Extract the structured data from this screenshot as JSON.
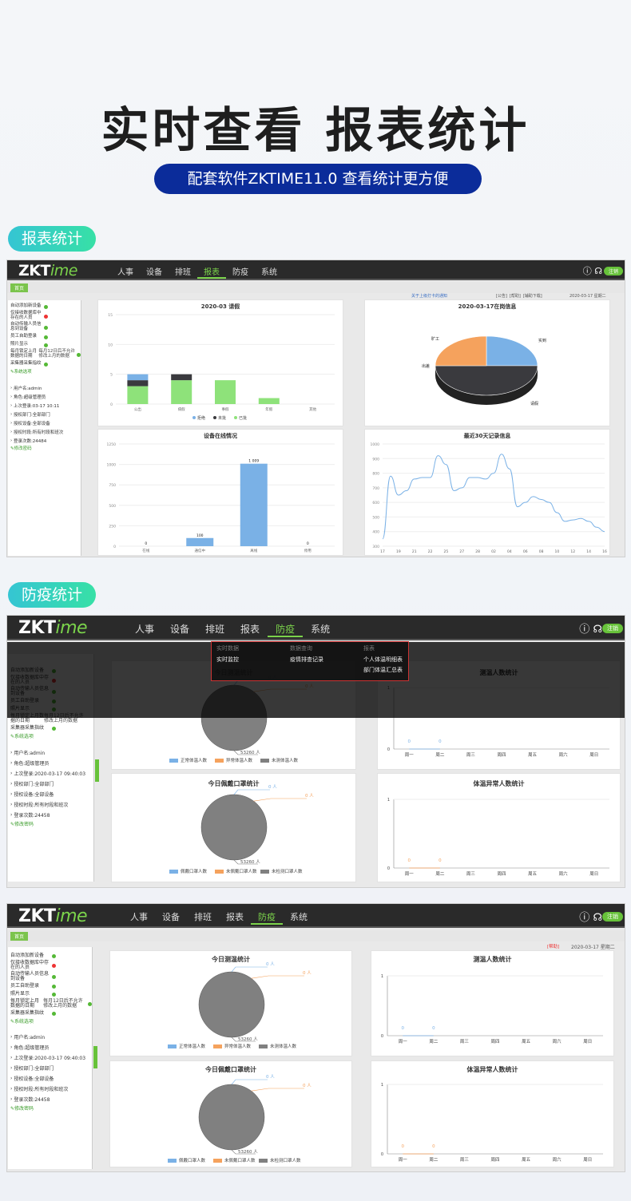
{
  "hero": {
    "title": "实时查看 报表统计",
    "subtitle": "配套软件ZKTIME11.0 查看统计更方便"
  },
  "sections": {
    "report": "报表统计",
    "epidemic": "防疫统计"
  },
  "app": {
    "logo_main": "ZKT",
    "logo_accent": "ime",
    "nav": [
      "人事",
      "设备",
      "排班",
      "报表",
      "防疫",
      "系统"
    ],
    "logout": "注销",
    "home_tab": "首页",
    "sidebar": {
      "items": [
        {
          "label": "自动添加新设备",
          "ext": "",
          "status": "ok"
        },
        {
          "label": "仅接收数据库中存在的人员",
          "ext": "",
          "status": "err"
        },
        {
          "label": "自动传输人员信息到设备",
          "ext": "",
          "status": "ok"
        },
        {
          "label": "员工自助登录",
          "ext": "",
          "status": "ok"
        },
        {
          "label": "照片显示",
          "ext": "",
          "status": "ok"
        },
        {
          "label": "每月锁定上月数据的日期",
          "ext": "每月12日后不允许修改上月的数据",
          "status": "ok"
        },
        {
          "label": "采集器采集指纹",
          "ext": "",
          "status": "ok"
        }
      ],
      "settings_link": "系统选项",
      "user_name": "用户名:admin",
      "role": "角色:超级管理员",
      "last_login_a": "上次登录:03-17 10:11",
      "last_login_b": "上次登录:2020-03-17 09:40:03",
      "dept": "授权部门:全部部门",
      "device": "授权设备:全部设备",
      "period": "授权时段:所有时段和班次",
      "login_count": "登录次数:24484",
      "login_count_b": "登录次数:24458",
      "change_pwd": "修改密码"
    },
    "notice": "关于上级打卡的通知",
    "toolbar_links": "[公告]",
    "help_link": "[帮助]",
    "guide_link": "[辅助下载]",
    "date": "2020-03-17 星期二"
  },
  "epidemic_menu": {
    "cols": [
      {
        "header": "实时数据",
        "items": [
          "实时监控"
        ]
      },
      {
        "header": "数据查询",
        "items": [
          "疫情排查记录"
        ]
      },
      {
        "header": "报表",
        "items": [
          "个人体温明细表",
          "部门体温汇总表"
        ]
      }
    ]
  },
  "chart_data": [
    {
      "type": "bar",
      "title": "2020-03 请假",
      "categories": [
        "公出",
        "病假",
        "事假",
        "年假",
        "其他"
      ],
      "series": [
        {
          "name": "已批",
          "values": [
            3,
            4,
            4,
            1,
            0
          ],
          "color": "#8ee27a"
        },
        {
          "name": "未批",
          "values": [
            1,
            1,
            0,
            0,
            0
          ],
          "color": "#3a3a3e"
        },
        {
          "name": "拒绝",
          "values": [
            1,
            0,
            0,
            0,
            0
          ],
          "color": "#7ab1e6"
        }
      ],
      "ylim": [
        0,
        15
      ],
      "yticks": [
        0,
        5,
        10,
        15
      ],
      "legend": [
        "拒绝",
        "未批",
        "已批"
      ],
      "legend_colors": [
        "#7ab1e6",
        "#3a3a3e",
        "#8ee27a"
      ]
    },
    {
      "type": "pie",
      "title": "2020-03-17在岗信息",
      "labels": [
        "实到",
        "请假",
        "出差",
        "旷工"
      ],
      "values": [
        25,
        50,
        25,
        0
      ],
      "colors": [
        "#7ab1e6",
        "#3a3a3e",
        "#f5a25d",
        "#f5a25d"
      ]
    },
    {
      "type": "bar",
      "title": "设备在线情况",
      "categories": [
        "在线",
        "通信中",
        "离线",
        "停用"
      ],
      "values": [
        0,
        100,
        1009,
        0
      ],
      "value_labels": [
        "0",
        "100",
        "1 009",
        "0"
      ],
      "ylim": [
        0,
        1250
      ],
      "yticks": [
        0,
        250,
        500,
        750,
        1000,
        1250
      ],
      "color": "#7ab1e6"
    },
    {
      "type": "line",
      "title": "最近30天记录信息",
      "x": [
        "17",
        "18",
        "19",
        "20",
        "21",
        "22",
        "23",
        "24",
        "25",
        "26",
        "27",
        "28",
        "29",
        "01",
        "02",
        "03",
        "04",
        "05",
        "06",
        "07",
        "08",
        "09",
        "10",
        "11",
        "12",
        "13",
        "14",
        "15",
        "16"
      ],
      "xticks": [
        "17",
        "19",
        "21",
        "22",
        "25",
        "27",
        "28",
        "02",
        "04",
        "06",
        "08",
        "10",
        "12",
        "14",
        "16"
      ],
      "values": [
        350,
        780,
        650,
        680,
        760,
        770,
        770,
        920,
        860,
        680,
        700,
        770,
        770,
        760,
        800,
        930,
        830,
        570,
        600,
        640,
        620,
        600,
        530,
        470,
        480,
        490,
        470,
        430,
        400
      ],
      "ylim": [
        300,
        1000
      ],
      "yticks": [
        300,
        400,
        500,
        600,
        700,
        800,
        900,
        1000
      ],
      "color": "#7ab1e6"
    },
    {
      "type": "pie",
      "title": "今日测温统计",
      "labels": [
        "正常体温人数",
        "异常体温人数",
        "未测体温人数"
      ],
      "values": [
        0,
        0,
        53260
      ],
      "value_labels": [
        "0 人",
        "0 人",
        "53260 人"
      ],
      "colors": [
        "#7ab1e6",
        "#f5a25d",
        "#808080"
      ]
    },
    {
      "type": "line",
      "title": "测温人数统计",
      "x": [
        "周一",
        "周二",
        "周三",
        "周四",
        "周五",
        "周六",
        "周日"
      ],
      "values": [
        0,
        0,
        null,
        null,
        null,
        null,
        null
      ],
      "ylim": [
        0,
        1
      ],
      "yticks": [
        0,
        1
      ],
      "color": "#7ab1e6"
    },
    {
      "type": "pie",
      "title": "今日佩戴口罩统计",
      "labels": [
        "佩戴口罩人数",
        "未佩戴口罩人数",
        "未检测口罩人数"
      ],
      "values": [
        0,
        0,
        53260
      ],
      "value_labels": [
        "0 人",
        "0 人",
        "53260 人"
      ],
      "colors": [
        "#7ab1e6",
        "#f5a25d",
        "#808080"
      ]
    },
    {
      "type": "line",
      "title": "体温异常人数统计",
      "x": [
        "周一",
        "周二",
        "周三",
        "周四",
        "周五",
        "周六",
        "周日"
      ],
      "values": [
        0,
        0,
        null,
        null,
        null,
        null,
        null
      ],
      "ylim": [
        0,
        1
      ],
      "yticks": [
        0,
        1
      ],
      "color": "#f5a25d"
    }
  ]
}
